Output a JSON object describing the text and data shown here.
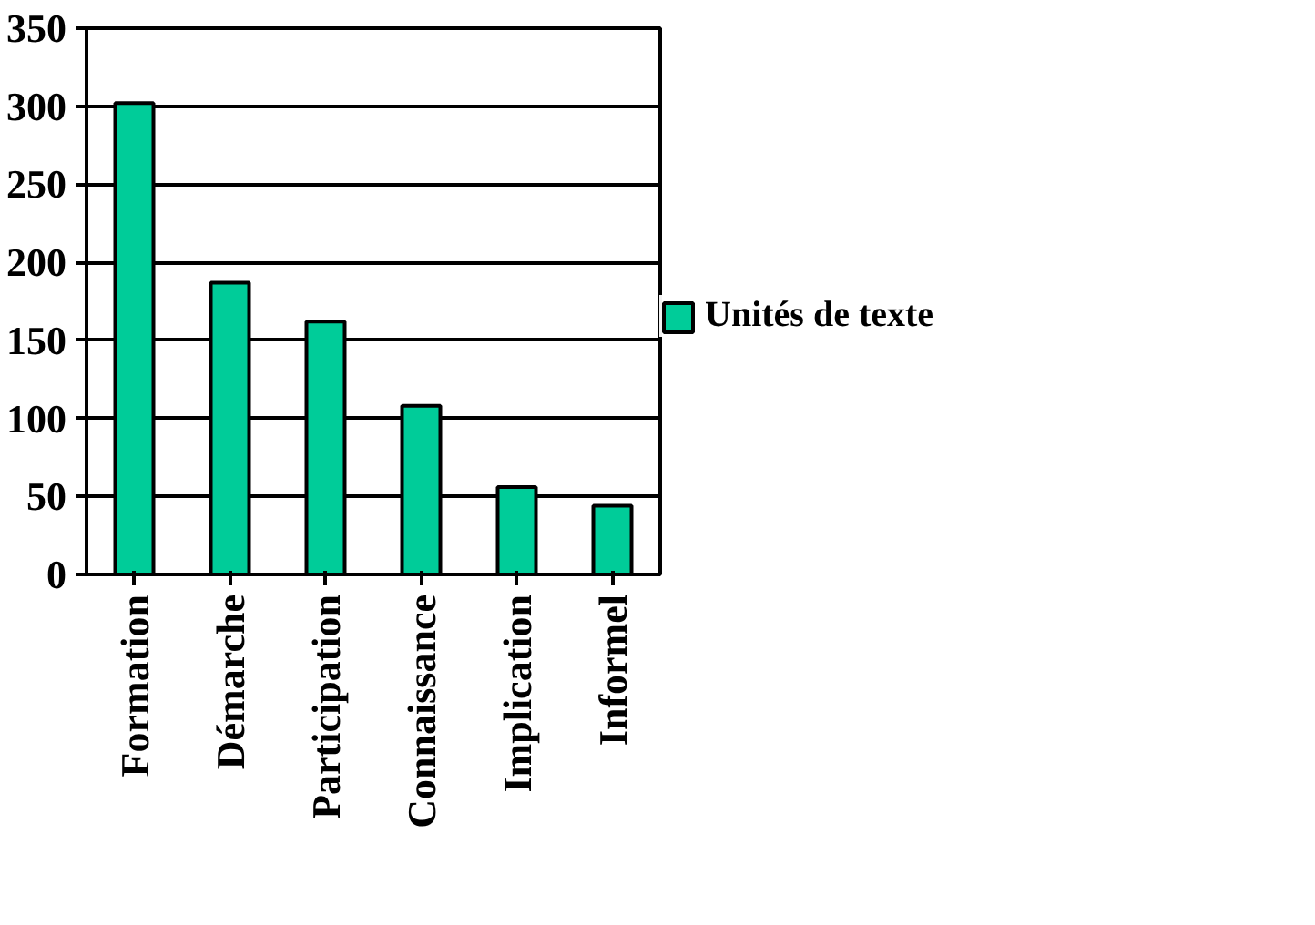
{
  "chart_data": {
    "type": "bar",
    "categories": [
      "Formation",
      "Démarche",
      "Participation",
      "Connaissance",
      "Implication",
      "Informel"
    ],
    "series": [
      {
        "name": "Unités de texte",
        "color": "#00cc99",
        "values": [
          302,
          187,
          162,
          108,
          56,
          44
        ]
      }
    ],
    "ylim": [
      0,
      350
    ],
    "yticks": [
      0,
      50,
      100,
      150,
      200,
      250,
      300,
      350
    ],
    "grid": "y",
    "legend": "right"
  }
}
